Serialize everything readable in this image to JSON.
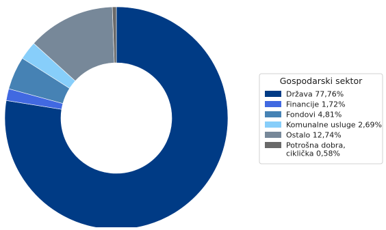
{
  "chart_data": {
    "type": "pie",
    "variant": "donut",
    "title": "",
    "legend": {
      "title": "Gospodarski sektor",
      "placement": "right"
    },
    "start_angle_deg": 90,
    "direction": "clockwise",
    "slices": [
      {
        "label": "Država 77,76%",
        "value": 77.76,
        "color": "#003b85"
      },
      {
        "label": "Financije 1,72%",
        "value": 1.72,
        "color": "#4169e1"
      },
      {
        "label": "Fondovi 4,81%",
        "value": 4.81,
        "color": "#4682b4"
      },
      {
        "label": "Komunalne usluge 2,69%",
        "value": 2.69,
        "color": "#87cefa"
      },
      {
        "label": "Ostalo 12,74%",
        "value": 12.74,
        "color": "#778899"
      },
      {
        "label": "Potrošna dobra,\nciklička 0,58%",
        "value": 0.58,
        "color": "#696969"
      }
    ]
  }
}
